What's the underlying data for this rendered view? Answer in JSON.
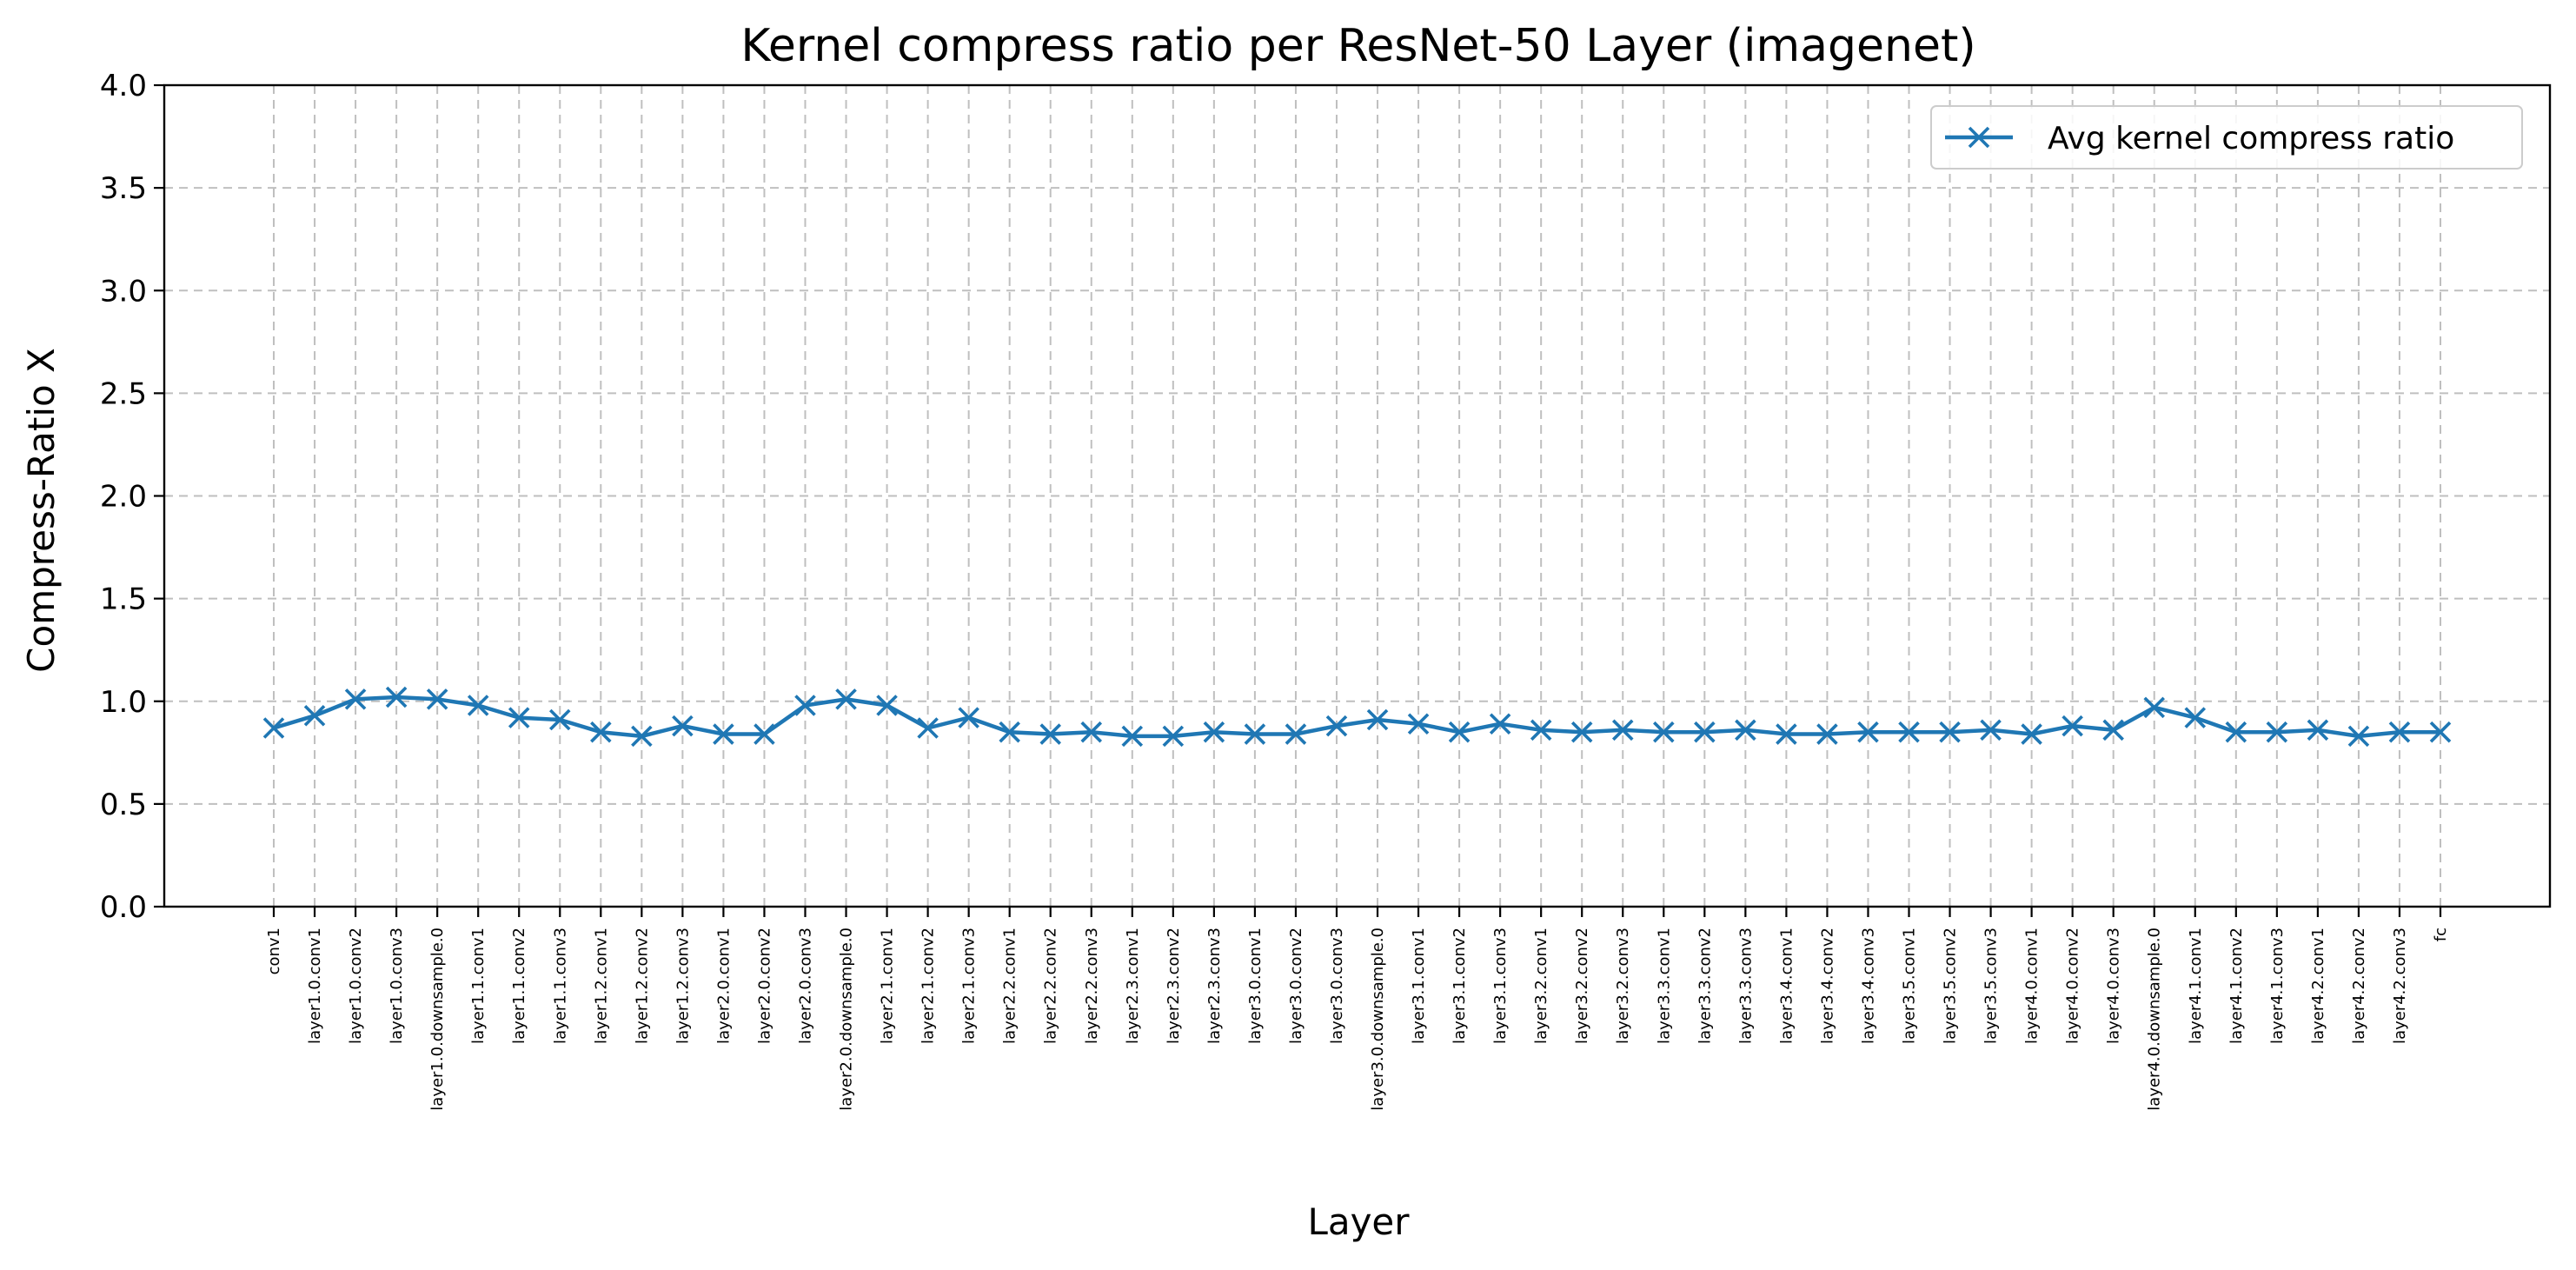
{
  "chart_data": {
    "type": "line",
    "title": "Kernel compress ratio per ResNet-50 Layer (imagenet)",
    "xlabel": "Layer",
    "ylabel": "Compress-Ratio X",
    "ylim": [
      0,
      4
    ],
    "yticks": [
      "0.0",
      "0.5",
      "1.0",
      "1.5",
      "2.0",
      "2.5",
      "3.0",
      "3.5",
      "4.0"
    ],
    "grid": true,
    "legend_position": "top-right",
    "categories": [
      "conv1",
      "layer1.0.conv1",
      "layer1.0.conv2",
      "layer1.0.conv3",
      "layer1.0.downsample.0",
      "layer1.1.conv1",
      "layer1.1.conv2",
      "layer1.1.conv3",
      "layer1.2.conv1",
      "layer1.2.conv2",
      "layer1.2.conv3",
      "layer2.0.conv1",
      "layer2.0.conv2",
      "layer2.0.conv3",
      "layer2.0.downsample.0",
      "layer2.1.conv1",
      "layer2.1.conv2",
      "layer2.1.conv3",
      "layer2.2.conv1",
      "layer2.2.conv2",
      "layer2.2.conv3",
      "layer2.3.conv1",
      "layer2.3.conv2",
      "layer2.3.conv3",
      "layer3.0.conv1",
      "layer3.0.conv2",
      "layer3.0.conv3",
      "layer3.0.downsample.0",
      "layer3.1.conv1",
      "layer3.1.conv2",
      "layer3.1.conv3",
      "layer3.2.conv1",
      "layer3.2.conv2",
      "layer3.2.conv3",
      "layer3.3.conv1",
      "layer3.3.conv2",
      "layer3.3.conv3",
      "layer3.4.conv1",
      "layer3.4.conv2",
      "layer3.4.conv3",
      "layer3.5.conv1",
      "layer3.5.conv2",
      "layer3.5.conv3",
      "layer4.0.conv1",
      "layer4.0.conv2",
      "layer4.0.conv3",
      "layer4.0.downsample.0",
      "layer4.1.conv1",
      "layer4.1.conv2",
      "layer4.1.conv3",
      "layer4.2.conv1",
      "layer4.2.conv2",
      "layer4.2.conv3",
      "fc"
    ],
    "series": [
      {
        "name": "Avg kernel compress ratio",
        "color": "#1f77b4",
        "marker": "x",
        "values": [
          0.87,
          0.93,
          1.01,
          1.02,
          1.01,
          0.98,
          0.92,
          0.91,
          0.85,
          0.83,
          0.88,
          0.84,
          0.84,
          0.98,
          1.01,
          0.98,
          0.87,
          0.92,
          0.85,
          0.84,
          0.85,
          0.83,
          0.83,
          0.85,
          0.84,
          0.84,
          0.88,
          0.91,
          0.89,
          0.85,
          0.89,
          0.86,
          0.85,
          0.86,
          0.85,
          0.85,
          0.86,
          0.84,
          0.84,
          0.85,
          0.85,
          0.85,
          0.86,
          0.84,
          0.88,
          0.86,
          0.97,
          0.92,
          0.85,
          0.85,
          0.86,
          0.83,
          0.85,
          0.85
        ]
      }
    ]
  }
}
